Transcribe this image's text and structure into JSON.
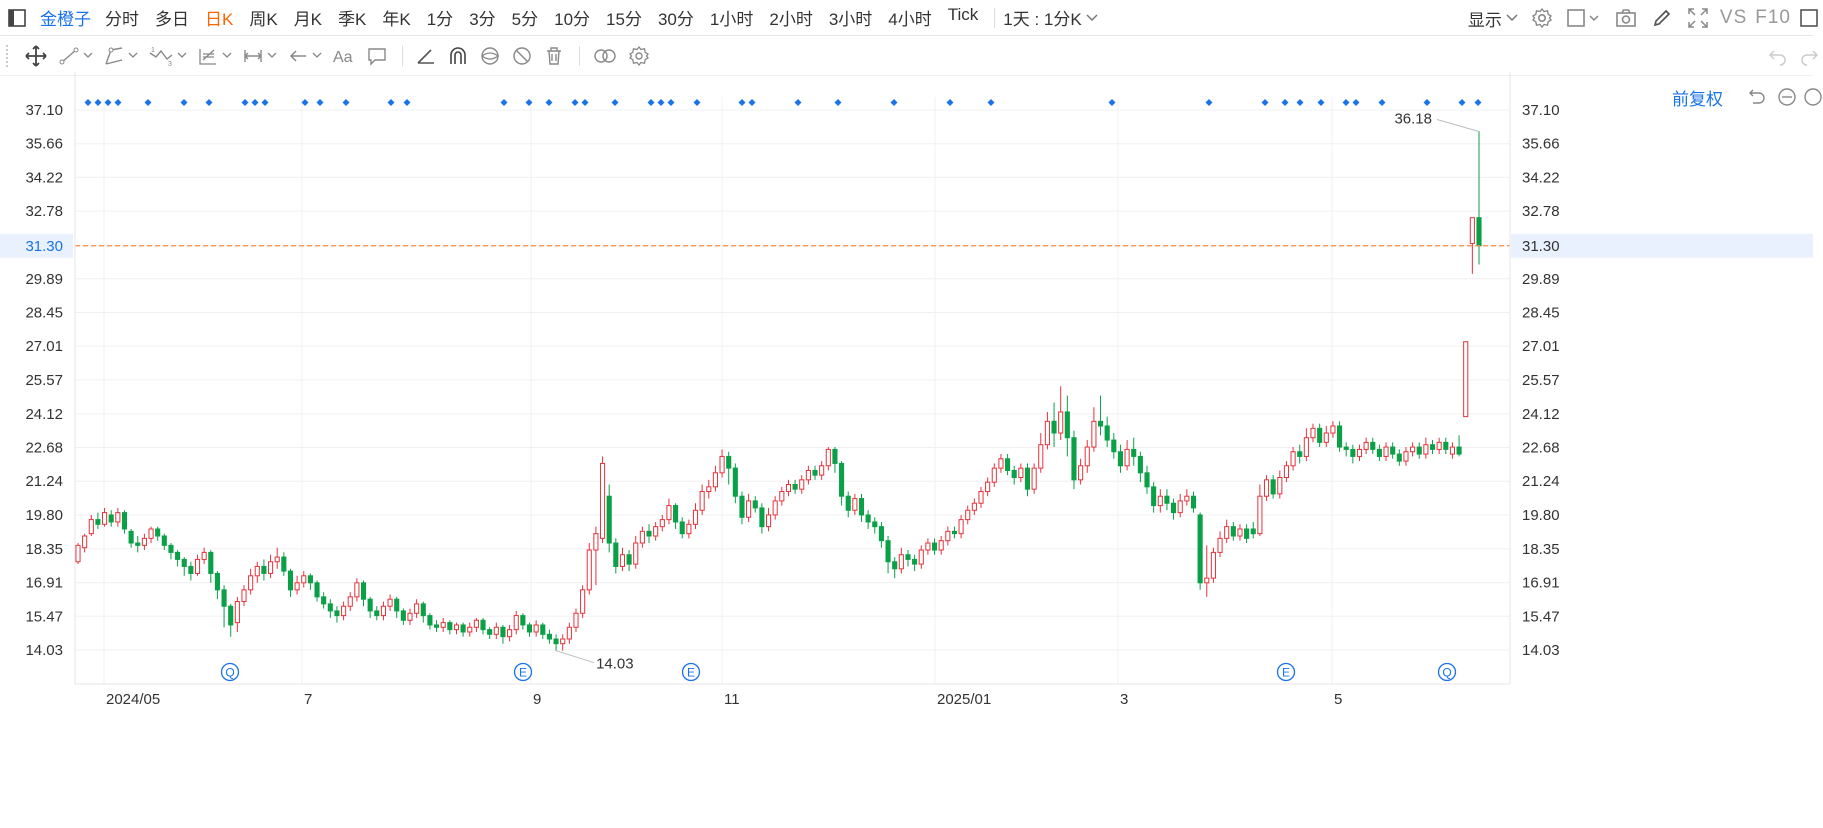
{
  "toolbar": {
    "symbol": "金橙子",
    "periods": [
      "分时",
      "多日",
      "日K",
      "周K",
      "月K",
      "季K",
      "年K",
      "1分",
      "3分",
      "5分",
      "10分",
      "15分",
      "30分",
      "1小时",
      "2小时",
      "3小时",
      "4小时",
      "Tick"
    ],
    "active_period": "日K",
    "interval_select": "1天 : 1分K",
    "display_menu": "显示",
    "vs": "VS",
    "f10": "F10"
  },
  "adjust_mode": "前复权",
  "colors": {
    "up": "#e8323c",
    "down": "#0aa048",
    "accent": "#1a73e8",
    "price_line": "#ff8a3d",
    "active_tab": "#ff6600"
  },
  "icons": [
    "sidebar-toggle-icon",
    "gear-icon",
    "square-icon",
    "camera-icon",
    "pencil-icon",
    "fullscreen-icon",
    "move-icon",
    "line-tool-icon",
    "channel-tool-icon",
    "wave-tool-icon",
    "fib-tool-icon",
    "measure-tool-icon",
    "arrow-tool-icon",
    "text-tool-icon",
    "comment-tool-icon",
    "angle-tool-icon",
    "magnet-icon",
    "eye-icon",
    "hide-icon",
    "trash-icon",
    "link-icon",
    "settings-icon",
    "undo-icon",
    "redo-icon",
    "reset-icon",
    "minus-icon"
  ],
  "chart_data": {
    "type": "candlestick",
    "ylim": [
      13.5,
      37.5
    ],
    "y_ticks": [
      "37.10",
      "35.66",
      "34.22",
      "32.78",
      "31.30",
      "29.89",
      "28.45",
      "27.01",
      "25.57",
      "24.12",
      "22.68",
      "21.24",
      "19.80",
      "18.35",
      "16.91",
      "15.47",
      "14.03"
    ],
    "x_ticks": [
      "2024/05",
      "7",
      "9",
      "11",
      "2025/01",
      "3",
      "5"
    ],
    "current_price": "31.30",
    "max_label": "36.18",
    "min_label": "14.03",
    "event_markers": [
      "Q",
      "E",
      "E",
      "E",
      "Q"
    ],
    "grid": true,
    "candles": [
      [
        17.8,
        18.5,
        17.7,
        18.6
      ],
      [
        18.4,
        18.9,
        18.2,
        19.0
      ],
      [
        19.0,
        19.6,
        18.9,
        19.8
      ],
      [
        19.6,
        19.4,
        19.2,
        19.9
      ],
      [
        19.4,
        19.9,
        19.3,
        20.1
      ],
      [
        19.8,
        19.5,
        19.3,
        20.0
      ],
      [
        19.5,
        19.9,
        19.3,
        20.1
      ],
      [
        19.9,
        19.2,
        19.0,
        20.0
      ],
      [
        19.1,
        18.6,
        18.4,
        19.2
      ],
      [
        18.6,
        18.5,
        18.2,
        18.9
      ],
      [
        18.5,
        18.8,
        18.3,
        19.0
      ],
      [
        18.8,
        19.2,
        18.6,
        19.3
      ],
      [
        19.2,
        18.9,
        18.7,
        19.3
      ],
      [
        18.9,
        18.5,
        18.3,
        19.0
      ],
      [
        18.5,
        18.2,
        17.9,
        18.6
      ],
      [
        18.2,
        17.9,
        17.6,
        18.3
      ],
      [
        17.9,
        17.6,
        17.2,
        18.0
      ],
      [
        17.6,
        17.3,
        17.0,
        17.8
      ],
      [
        17.3,
        17.9,
        17.2,
        18.1
      ],
      [
        17.9,
        18.2,
        17.7,
        18.4
      ],
      [
        18.2,
        17.3,
        16.9,
        18.3
      ],
      [
        17.3,
        16.6,
        16.2,
        17.4
      ],
      [
        16.6,
        15.9,
        15.0,
        16.8
      ],
      [
        15.9,
        15.1,
        14.6,
        16.0
      ],
      [
        15.2,
        16.1,
        14.8,
        16.3
      ],
      [
        16.1,
        16.6,
        15.9,
        16.8
      ],
      [
        16.6,
        17.2,
        16.4,
        17.5
      ],
      [
        17.2,
        17.6,
        16.9,
        17.8
      ],
      [
        17.6,
        17.3,
        17.0,
        17.9
      ],
      [
        17.3,
        17.8,
        17.1,
        18.1
      ],
      [
        17.8,
        18.0,
        17.5,
        18.4
      ],
      [
        18.0,
        17.4,
        17.2,
        18.2
      ],
      [
        17.4,
        16.6,
        16.3,
        17.5
      ],
      [
        16.6,
        16.9,
        16.4,
        17.2
      ],
      [
        16.9,
        17.2,
        16.7,
        17.4
      ],
      [
        17.2,
        16.9,
        16.6,
        17.3
      ],
      [
        16.9,
        16.3,
        16.1,
        17.0
      ],
      [
        16.3,
        16.0,
        15.8,
        16.5
      ],
      [
        16.0,
        15.7,
        15.4,
        16.2
      ],
      [
        15.7,
        15.5,
        15.2,
        15.9
      ],
      [
        15.5,
        15.9,
        15.3,
        16.1
      ],
      [
        15.9,
        16.3,
        15.7,
        16.5
      ],
      [
        16.3,
        16.9,
        16.1,
        17.1
      ],
      [
        16.9,
        16.2,
        15.9,
        17.0
      ],
      [
        16.2,
        15.7,
        15.4,
        16.3
      ],
      [
        15.7,
        15.5,
        15.3,
        15.9
      ],
      [
        15.5,
        15.9,
        15.3,
        16.1
      ],
      [
        15.9,
        16.2,
        15.7,
        16.4
      ],
      [
        16.2,
        15.7,
        15.4,
        16.3
      ],
      [
        15.7,
        15.3,
        15.1,
        15.8
      ],
      [
        15.3,
        15.6,
        15.1,
        15.8
      ],
      [
        15.6,
        16.0,
        15.4,
        16.2
      ],
      [
        16.0,
        15.5,
        15.2,
        16.1
      ],
      [
        15.5,
        15.1,
        14.9,
        15.6
      ],
      [
        15.1,
        15.0,
        14.8,
        15.3
      ],
      [
        15.0,
        15.2,
        14.8,
        15.4
      ],
      [
        15.2,
        14.9,
        14.7,
        15.3
      ],
      [
        14.9,
        15.1,
        14.7,
        15.2
      ],
      [
        15.1,
        14.8,
        14.6,
        15.2
      ],
      [
        14.8,
        15.0,
        14.6,
        15.2
      ],
      [
        15.0,
        15.3,
        14.8,
        15.4
      ],
      [
        15.3,
        14.9,
        14.7,
        15.4
      ],
      [
        14.9,
        14.7,
        14.5,
        15.0
      ],
      [
        14.7,
        15.0,
        14.5,
        15.2
      ],
      [
        15.0,
        14.6,
        14.3,
        15.1
      ],
      [
        14.6,
        14.9,
        14.4,
        15.1
      ],
      [
        14.9,
        15.5,
        14.7,
        15.7
      ],
      [
        15.5,
        15.1,
        14.9,
        15.6
      ],
      [
        15.1,
        14.8,
        14.6,
        15.2
      ],
      [
        14.8,
        15.1,
        14.6,
        15.3
      ],
      [
        15.1,
        14.7,
        14.5,
        15.2
      ],
      [
        14.7,
        14.5,
        14.3,
        14.9
      ],
      [
        14.5,
        14.3,
        14.0,
        14.7
      ],
      [
        14.3,
        14.5,
        14.0,
        14.7
      ],
      [
        14.5,
        15.0,
        14.3,
        15.2
      ],
      [
        15.0,
        15.6,
        14.8,
        15.8
      ],
      [
        15.6,
        16.6,
        15.4,
        16.8
      ],
      [
        16.6,
        18.3,
        16.4,
        18.6
      ],
      [
        18.3,
        19.0,
        16.8,
        19.3
      ],
      [
        18.8,
        22.0,
        18.6,
        22.3
      ],
      [
        20.6,
        18.6,
        18.2,
        21.1
      ],
      [
        18.6,
        17.6,
        17.3,
        18.8
      ],
      [
        17.6,
        18.1,
        17.4,
        18.4
      ],
      [
        18.1,
        17.7,
        17.4,
        18.3
      ],
      [
        17.7,
        18.6,
        17.5,
        18.9
      ],
      [
        18.6,
        19.1,
        18.4,
        19.3
      ],
      [
        19.1,
        18.9,
        18.6,
        19.4
      ],
      [
        18.9,
        19.3,
        18.7,
        19.5
      ],
      [
        19.3,
        19.6,
        19.1,
        19.8
      ],
      [
        19.6,
        20.2,
        19.4,
        20.5
      ],
      [
        20.2,
        19.5,
        19.2,
        20.3
      ],
      [
        19.5,
        19.0,
        18.8,
        19.7
      ],
      [
        19.0,
        19.4,
        18.8,
        19.6
      ],
      [
        19.4,
        20.0,
        19.2,
        20.3
      ],
      [
        20.0,
        20.8,
        19.8,
        21.1
      ],
      [
        20.8,
        21.0,
        20.5,
        21.3
      ],
      [
        21.0,
        21.6,
        20.8,
        21.9
      ],
      [
        21.6,
        22.3,
        21.4,
        22.6
      ],
      [
        22.3,
        21.8,
        21.1,
        22.5
      ],
      [
        21.8,
        20.6,
        20.3,
        22.0
      ],
      [
        20.6,
        19.7,
        19.4,
        20.8
      ],
      [
        19.7,
        20.4,
        19.5,
        20.7
      ],
      [
        20.4,
        20.1,
        19.9,
        20.6
      ],
      [
        20.1,
        19.3,
        19.0,
        20.3
      ],
      [
        19.3,
        19.8,
        19.1,
        20.1
      ],
      [
        19.8,
        20.4,
        19.6,
        20.6
      ],
      [
        20.4,
        20.8,
        20.2,
        21.0
      ],
      [
        20.8,
        21.1,
        20.6,
        21.3
      ],
      [
        21.1,
        20.9,
        20.7,
        21.3
      ],
      [
        20.9,
        21.3,
        20.7,
        21.5
      ],
      [
        21.3,
        21.7,
        21.1,
        21.9
      ],
      [
        21.7,
        21.5,
        21.3,
        21.9
      ],
      [
        21.5,
        21.9,
        21.3,
        22.1
      ],
      [
        21.9,
        22.6,
        21.7,
        22.7
      ],
      [
        22.6,
        22.0,
        21.6,
        22.7
      ],
      [
        22.0,
        20.6,
        20.2,
        22.1
      ],
      [
        20.6,
        20.0,
        19.7,
        20.8
      ],
      [
        20.0,
        20.5,
        19.8,
        20.7
      ],
      [
        20.5,
        19.8,
        19.5,
        20.7
      ],
      [
        19.8,
        19.5,
        19.2,
        20.0
      ],
      [
        19.5,
        19.3,
        19.0,
        19.7
      ],
      [
        19.3,
        18.7,
        18.4,
        19.5
      ],
      [
        18.7,
        17.8,
        17.3,
        18.9
      ],
      [
        17.8,
        17.5,
        17.1,
        18.0
      ],
      [
        17.5,
        18.1,
        17.3,
        18.4
      ],
      [
        18.1,
        17.9,
        17.6,
        18.3
      ],
      [
        17.9,
        17.7,
        17.4,
        18.1
      ],
      [
        17.7,
        18.3,
        17.5,
        18.5
      ],
      [
        18.3,
        18.6,
        18.1,
        18.8
      ],
      [
        18.6,
        18.3,
        18.1,
        18.8
      ],
      [
        18.3,
        18.7,
        18.1,
        18.9
      ],
      [
        18.7,
        19.1,
        18.5,
        19.3
      ],
      [
        19.1,
        19.0,
        18.8,
        19.3
      ],
      [
        19.0,
        19.6,
        18.8,
        19.8
      ],
      [
        19.6,
        20.0,
        19.4,
        20.2
      ],
      [
        20.0,
        20.3,
        19.8,
        20.5
      ],
      [
        20.3,
        20.8,
        20.1,
        21.0
      ],
      [
        20.8,
        21.2,
        20.6,
        21.4
      ],
      [
        21.2,
        21.8,
        21.0,
        22.0
      ],
      [
        21.8,
        22.2,
        21.6,
        22.4
      ],
      [
        22.2,
        21.7,
        21.5,
        22.4
      ],
      [
        21.7,
        21.4,
        21.1,
        21.9
      ],
      [
        21.4,
        21.8,
        21.2,
        22.0
      ],
      [
        21.8,
        20.9,
        20.6,
        22.0
      ],
      [
        20.9,
        21.8,
        20.7,
        22.0
      ],
      [
        21.8,
        22.8,
        21.6,
        23.3
      ],
      [
        22.8,
        23.8,
        22.6,
        24.2
      ],
      [
        23.8,
        23.3,
        22.7,
        24.6
      ],
      [
        23.3,
        24.2,
        23.0,
        25.3
      ],
      [
        24.2,
        23.1,
        22.3,
        24.9
      ],
      [
        23.1,
        21.3,
        20.9,
        23.4
      ],
      [
        21.3,
        21.9,
        21.1,
        22.2
      ],
      [
        21.9,
        22.7,
        21.6,
        23.0
      ],
      [
        22.7,
        23.8,
        22.5,
        24.4
      ],
      [
        23.8,
        23.6,
        23.2,
        24.9
      ],
      [
        23.6,
        23.0,
        22.7,
        24.0
      ],
      [
        23.0,
        22.5,
        22.2,
        23.3
      ],
      [
        22.5,
        21.9,
        21.6,
        22.8
      ],
      [
        21.9,
        22.6,
        21.7,
        23.0
      ],
      [
        22.6,
        22.3,
        21.9,
        23.1
      ],
      [
        22.3,
        21.6,
        21.2,
        22.5
      ],
      [
        21.6,
        21.0,
        20.7,
        21.9
      ],
      [
        21.0,
        20.2,
        19.9,
        21.2
      ],
      [
        20.2,
        20.6,
        19.9,
        20.9
      ],
      [
        20.6,
        20.3,
        20.0,
        20.9
      ],
      [
        20.3,
        19.9,
        19.6,
        20.5
      ],
      [
        19.9,
        20.4,
        19.7,
        20.7
      ],
      [
        20.4,
        20.6,
        20.2,
        20.9
      ],
      [
        20.6,
        20.1,
        19.9,
        20.8
      ],
      [
        19.8,
        16.9,
        16.6,
        19.9
      ],
      [
        16.9,
        17.1,
        16.3,
        18.5
      ],
      [
        17.1,
        18.2,
        16.9,
        18.4
      ],
      [
        18.2,
        18.8,
        18.0,
        19.1
      ],
      [
        18.8,
        19.3,
        18.6,
        19.6
      ],
      [
        19.3,
        18.9,
        18.7,
        19.5
      ],
      [
        18.9,
        19.2,
        18.7,
        19.4
      ],
      [
        19.2,
        18.8,
        18.6,
        19.4
      ],
      [
        19.2,
        19.0,
        18.8,
        19.5
      ],
      [
        19.0,
        20.6,
        18.9,
        21.1
      ],
      [
        20.6,
        21.3,
        20.4,
        21.5
      ],
      [
        21.3,
        20.7,
        20.5,
        21.5
      ],
      [
        20.7,
        21.4,
        20.5,
        21.7
      ],
      [
        21.4,
        21.9,
        21.2,
        22.1
      ],
      [
        21.9,
        22.5,
        21.7,
        22.7
      ],
      [
        22.5,
        22.3,
        22.0,
        22.8
      ],
      [
        22.3,
        23.1,
        22.1,
        23.5
      ],
      [
        23.1,
        23.5,
        22.9,
        23.7
      ],
      [
        23.5,
        22.9,
        22.7,
        23.7
      ],
      [
        22.9,
        23.3,
        22.7,
        23.6
      ],
      [
        23.3,
        23.6,
        23.1,
        23.8
      ],
      [
        23.6,
        22.7,
        22.5,
        23.8
      ],
      [
        22.7,
        22.6,
        22.3,
        22.9
      ],
      [
        22.6,
        22.3,
        22.0,
        22.8
      ],
      [
        22.3,
        22.6,
        22.1,
        22.8
      ],
      [
        22.6,
        22.9,
        22.4,
        23.1
      ],
      [
        22.9,
        22.6,
        22.4,
        23.1
      ],
      [
        22.6,
        22.3,
        22.1,
        22.8
      ],
      [
        22.3,
        22.7,
        22.1,
        22.9
      ],
      [
        22.7,
        22.4,
        22.2,
        22.9
      ],
      [
        22.4,
        22.1,
        21.9,
        22.6
      ],
      [
        22.1,
        22.5,
        21.9,
        22.7
      ],
      [
        22.5,
        22.7,
        22.3,
        22.9
      ],
      [
        22.7,
        22.4,
        22.2,
        22.9
      ],
      [
        22.4,
        22.8,
        22.2,
        23.1
      ],
      [
        22.8,
        22.6,
        22.4,
        23.0
      ],
      [
        22.6,
        22.9,
        22.4,
        23.1
      ],
      [
        22.9,
        22.6,
        22.4,
        23.1
      ],
      [
        22.4,
        22.7,
        22.2,
        22.9
      ],
      [
        22.7,
        22.4,
        22.3,
        23.2
      ],
      [
        24.0,
        27.2,
        24.0,
        27.2
      ],
      [
        31.4,
        32.5,
        30.1,
        32.5
      ],
      [
        32.5,
        31.3,
        30.5,
        36.18
      ]
    ]
  }
}
